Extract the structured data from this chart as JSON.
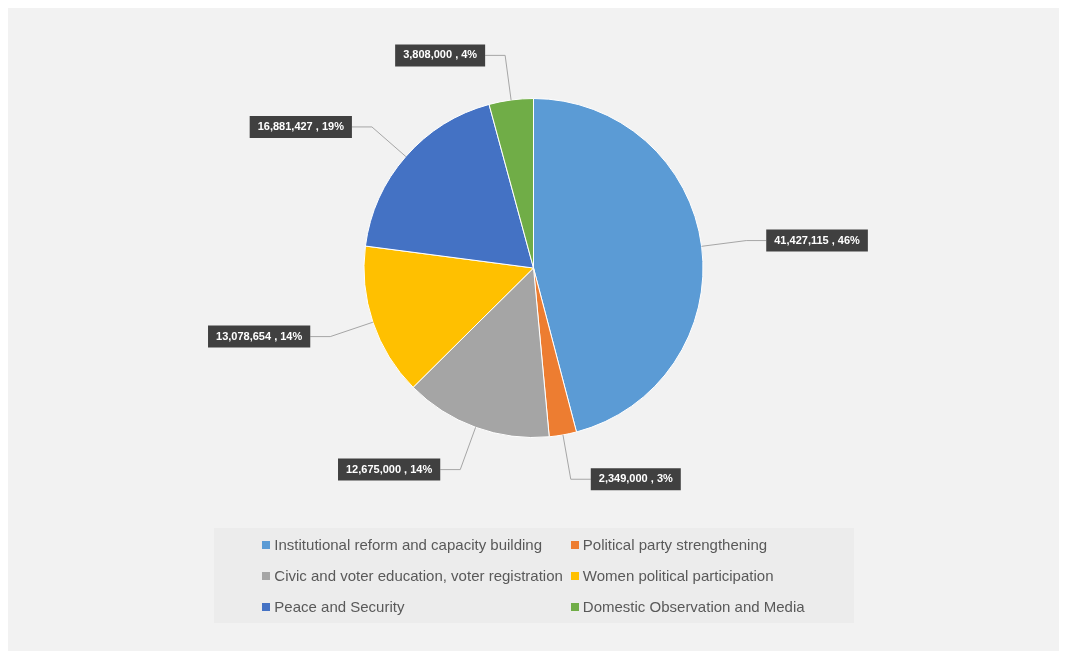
{
  "chart_data": {
    "type": "pie",
    "categories": [
      "Institutional reform and capacity building",
      "Political party strengthening",
      "Civic and voter education, voter registration",
      "Women political participation",
      "Peace and Security",
      "Domestic Observation and Media"
    ],
    "values": [
      41427115,
      2349000,
      12675000,
      13078654,
      16881427,
      3808000
    ],
    "colors": [
      "#5b9bd5",
      "#ed7d31",
      "#a5a5a5",
      "#ffc000",
      "#4472c4",
      "#70ad47"
    ],
    "value_labels": [
      "41,427,115 , 46%",
      "2,349,000 , 3%",
      "12,675,000 , 14%",
      "13,078,654 , 14%",
      "16,881,427 , 19%",
      "3,808,000 , 4%"
    ],
    "legend": "bottom"
  }
}
